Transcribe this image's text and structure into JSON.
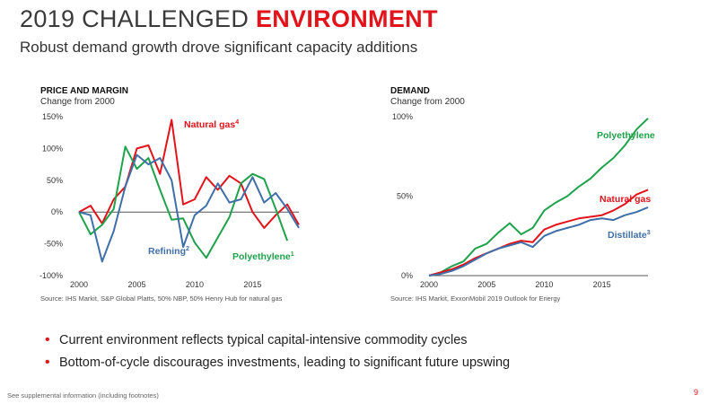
{
  "header": {
    "title_main": "2019 CHALLENGED",
    "title_accent": "ENVIRONMENT",
    "subtitle": "Robust demand growth drove significant capacity additions"
  },
  "colors": {
    "accent": "#e3131b",
    "natural_gas": "#e3131b",
    "polyethylene": "#1ea24a",
    "refining": "#3f6fa8",
    "distillate": "#3f6fa8"
  },
  "chart_data": [
    {
      "type": "line",
      "heading": "PRICE AND MARGIN",
      "subheading": "Change from 2000",
      "ylim": [
        -100,
        150
      ],
      "yticks": [
        150,
        100,
        50,
        0,
        -50,
        -100
      ],
      "ytick_labels": [
        "150%",
        "100%",
        "50%",
        "0%",
        "-50%",
        "-100%"
      ],
      "xlim": [
        2000,
        2019
      ],
      "xticks": [
        2000,
        2005,
        2010,
        2015
      ],
      "x": [
        2000,
        2001,
        2002,
        2003,
        2004,
        2005,
        2006,
        2007,
        2008,
        2009,
        2010,
        2011,
        2012,
        2013,
        2014,
        2015,
        2016,
        2017,
        2018,
        2019
      ],
      "series": [
        {
          "name": "Natural gas",
          "sup": "4",
          "color": "#e3131b",
          "values": [
            0,
            10,
            -18,
            20,
            40,
            100,
            105,
            60,
            145,
            12,
            20,
            55,
            35,
            57,
            45,
            0,
            -25,
            -5,
            12,
            -20
          ]
        },
        {
          "name": "Polyethylene",
          "sup": "1",
          "color": "#1ea24a",
          "values": [
            0,
            -35,
            -20,
            5,
            103,
            68,
            85,
            35,
            -12,
            -10,
            -48,
            -72,
            -40,
            -8,
            45,
            60,
            52,
            5,
            -45,
            null
          ]
        },
        {
          "name": "Refining",
          "sup": "2",
          "color": "#3f6fa8",
          "values": [
            0,
            -5,
            -78,
            -30,
            40,
            90,
            75,
            85,
            50,
            -55,
            -5,
            10,
            45,
            15,
            20,
            55,
            15,
            30,
            5,
            -25
          ]
        }
      ],
      "source": "Source: IHS Markit, S&P Global Platts, 50% NBP, 50% Henry Hub for natural gas"
    },
    {
      "type": "line",
      "heading": "DEMAND",
      "subheading": "Change from 2000",
      "ylim": [
        0,
        100
      ],
      "yticks": [
        100,
        50,
        0
      ],
      "ytick_labels": [
        "100%",
        "50%",
        "0%"
      ],
      "xlim": [
        2000,
        2019
      ],
      "xticks": [
        2000,
        2005,
        2010,
        2015
      ],
      "x": [
        2000,
        2001,
        2002,
        2003,
        2004,
        2005,
        2006,
        2007,
        2008,
        2009,
        2010,
        2011,
        2012,
        2013,
        2014,
        2015,
        2016,
        2017,
        2018,
        2019
      ],
      "series": [
        {
          "name": "Polyethylene",
          "sup": "",
          "color": "#1ea24a",
          "values": [
            0,
            2,
            6,
            9,
            17,
            20,
            27,
            33,
            26,
            30,
            41,
            46,
            50,
            56,
            61,
            68,
            74,
            82,
            92,
            99
          ]
        },
        {
          "name": "Natural gas",
          "sup": "",
          "color": "#e3131b",
          "values": [
            0,
            2,
            4,
            7,
            11,
            14,
            17,
            20,
            22,
            21,
            29,
            32,
            34,
            36,
            37,
            38,
            41,
            45,
            51,
            54
          ]
        },
        {
          "name": "Distillate",
          "sup": "3",
          "color": "#3f6fa8",
          "values": [
            0,
            1,
            3,
            6,
            10,
            14,
            17,
            19,
            21,
            18,
            25,
            28,
            30,
            32,
            35,
            36,
            35,
            38,
            40,
            43
          ]
        }
      ],
      "source": "Source: IHS Markit, ExxonMobil 2019 Outlook for Energy"
    }
  ],
  "bullets": [
    "Current environment reflects typical capital-intensive commodity cycles",
    "Bottom-of-cycle discourages investments, leading to significant future upswing"
  ],
  "footnote": "See supplemental information (including footnotes)",
  "page_number": "9"
}
